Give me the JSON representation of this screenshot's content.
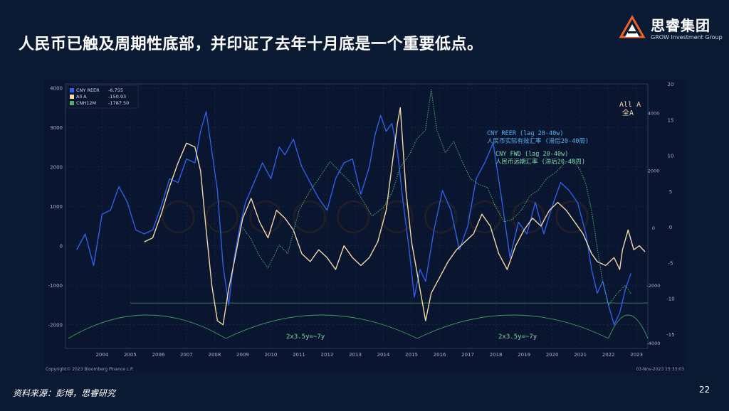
{
  "slide": {
    "title": "人民币已触及周期性底部，并印证了去年十月底是一个重要低点。",
    "source": "资料来源：彭博，思睿研究",
    "page_number": "22"
  },
  "logo": {
    "name": "思睿集团",
    "subtitle": "GROW Investment Group"
  },
  "colors": {
    "background": "#0b1a33",
    "cny_reer": "#2f5fe8",
    "all_a": "#f3d9a8",
    "cnh12m": "#4fae6e",
    "annotation": "#5ab0f0",
    "annotation_green": "#7ed8a6",
    "cycle": "#3f9a5a"
  },
  "chart_data": {
    "type": "line",
    "x_axis": {
      "ticks": [
        "2004",
        "2005",
        "2006",
        "2007",
        "2008",
        "2009",
        "2010",
        "2011",
        "2012",
        "2013",
        "2014",
        "2015",
        "2016",
        "2017",
        "2018",
        "2019",
        "2020",
        "2021",
        "2022",
        "2023"
      ],
      "range": [
        2003.2,
        2023.9
      ]
    },
    "left_axis": {
      "ticks": [
        4000,
        3000,
        2000,
        1000,
        0,
        -1000,
        -2000
      ],
      "range": [
        -2600,
        4100
      ]
    },
    "right_axis": {
      "ticks": [
        20,
        15,
        10,
        5,
        0,
        -5,
        -10,
        -15
      ],
      "range": [
        -17,
        20
      ],
      "inner_ticks": [
        4000,
        2000,
        0,
        -2000,
        -4000
      ],
      "inner_range": [
        -4200,
        5000
      ]
    },
    "legend": [
      {
        "name": "CNY REER",
        "value": "-6.755",
        "color": "#2f5fe8",
        "style": "solid"
      },
      {
        "name": "All A",
        "value": "-150.93",
        "color": "#f3d9a8",
        "style": "solid"
      },
      {
        "name": "CNH12M",
        "value": "-1787.50",
        "color": "#4fae6e",
        "style": "dotted"
      }
    ],
    "series": [
      {
        "name": "CNY REER",
        "axis": "left",
        "points": [
          [
            2003.6,
            -100
          ],
          [
            2003.9,
            300
          ],
          [
            2004.2,
            -500
          ],
          [
            2004.5,
            800
          ],
          [
            2004.8,
            900
          ],
          [
            2005.1,
            1500
          ],
          [
            2005.4,
            1100
          ],
          [
            2005.7,
            400
          ],
          [
            2006.0,
            300
          ],
          [
            2006.3,
            400
          ],
          [
            2006.6,
            1000
          ],
          [
            2006.9,
            1700
          ],
          [
            2007.2,
            1600
          ],
          [
            2007.5,
            2200
          ],
          [
            2007.8,
            2100
          ],
          [
            2008.0,
            2900
          ],
          [
            2008.2,
            3400
          ],
          [
            2008.4,
            2400
          ],
          [
            2008.6,
            1400
          ],
          [
            2008.8,
            -500
          ],
          [
            2009.0,
            -1500
          ],
          [
            2009.2,
            -300
          ],
          [
            2009.4,
            500
          ],
          [
            2009.6,
            1100
          ],
          [
            2009.9,
            1600
          ],
          [
            2010.2,
            2100
          ],
          [
            2010.5,
            1700
          ],
          [
            2010.8,
            2500
          ],
          [
            2011.0,
            2300
          ],
          [
            2011.3,
            2700
          ],
          [
            2011.6,
            2000
          ],
          [
            2011.9,
            1600
          ],
          [
            2012.2,
            1200
          ],
          [
            2012.5,
            900
          ],
          [
            2012.8,
            1700
          ],
          [
            2013.1,
            2100
          ],
          [
            2013.4,
            2200
          ],
          [
            2013.7,
            1300
          ],
          [
            2014.0,
            2000
          ],
          [
            2014.2,
            2800
          ],
          [
            2014.4,
            3300
          ],
          [
            2014.6,
            2900
          ],
          [
            2014.8,
            3100
          ],
          [
            2015.0,
            2400
          ],
          [
            2015.2,
            1100
          ],
          [
            2015.4,
            0
          ],
          [
            2015.6,
            -1300
          ],
          [
            2015.8,
            -600
          ],
          [
            2016.0,
            -900
          ],
          [
            2016.3,
            400
          ],
          [
            2016.6,
            1400
          ],
          [
            2016.9,
            900
          ],
          [
            2017.2,
            -100
          ],
          [
            2017.5,
            500
          ],
          [
            2017.8,
            1700
          ],
          [
            2018.1,
            2100
          ],
          [
            2018.4,
            2600
          ],
          [
            2018.7,
            1200
          ],
          [
            2019.0,
            -300
          ],
          [
            2019.3,
            600
          ],
          [
            2019.6,
            300
          ],
          [
            2019.9,
            1100
          ],
          [
            2020.2,
            300
          ],
          [
            2020.5,
            1000
          ],
          [
            2020.8,
            1600
          ],
          [
            2021.1,
            1400
          ],
          [
            2021.4,
            1100
          ],
          [
            2021.7,
            300
          ],
          [
            2021.9,
            -600
          ],
          [
            2022.1,
            -1200
          ],
          [
            2022.3,
            -900
          ],
          [
            2022.5,
            -1500
          ],
          [
            2022.7,
            -2000
          ],
          [
            2022.9,
            -1700
          ],
          [
            2023.1,
            -1100
          ],
          [
            2023.3,
            -700
          ]
        ]
      },
      {
        "name": "All A",
        "axis": "left",
        "points": [
          [
            2006.0,
            100
          ],
          [
            2006.3,
            200
          ],
          [
            2006.6,
            800
          ],
          [
            2006.9,
            1500
          ],
          [
            2007.2,
            2100
          ],
          [
            2007.5,
            2600
          ],
          [
            2007.8,
            2500
          ],
          [
            2008.0,
            1900
          ],
          [
            2008.2,
            400
          ],
          [
            2008.4,
            -1000
          ],
          [
            2008.6,
            -1900
          ],
          [
            2008.8,
            -2000
          ],
          [
            2009.0,
            -1100
          ],
          [
            2009.2,
            -400
          ],
          [
            2009.5,
            700
          ],
          [
            2009.8,
            1200
          ],
          [
            2010.1,
            600
          ],
          [
            2010.4,
            200
          ],
          [
            2010.7,
            900
          ],
          [
            2011.0,
            700
          ],
          [
            2011.3,
            400
          ],
          [
            2011.6,
            -200
          ],
          [
            2011.9,
            -400
          ],
          [
            2012.2,
            -100
          ],
          [
            2012.5,
            -300
          ],
          [
            2012.8,
            -600
          ],
          [
            2013.1,
            0
          ],
          [
            2013.4,
            -300
          ],
          [
            2013.7,
            -500
          ],
          [
            2014.0,
            -300
          ],
          [
            2014.3,
            100
          ],
          [
            2014.6,
            900
          ],
          [
            2014.8,
            2000
          ],
          [
            2015.0,
            3100
          ],
          [
            2015.1,
            3500
          ],
          [
            2015.3,
            1400
          ],
          [
            2015.5,
            100
          ],
          [
            2015.7,
            -700
          ],
          [
            2015.9,
            -1500
          ],
          [
            2016.0,
            -1900
          ],
          [
            2016.2,
            -1200
          ],
          [
            2016.5,
            -800
          ],
          [
            2016.8,
            -400
          ],
          [
            2017.1,
            -100
          ],
          [
            2017.4,
            100
          ],
          [
            2017.7,
            300
          ],
          [
            2018.0,
            800
          ],
          [
            2018.3,
            500
          ],
          [
            2018.6,
            -200
          ],
          [
            2018.9,
            -600
          ],
          [
            2019.2,
            0
          ],
          [
            2019.5,
            400
          ],
          [
            2019.8,
            700
          ],
          [
            2020.1,
            500
          ],
          [
            2020.4,
            900
          ],
          [
            2020.7,
            1100
          ],
          [
            2021.0,
            900
          ],
          [
            2021.3,
            600
          ],
          [
            2021.6,
            300
          ],
          [
            2021.9,
            -200
          ],
          [
            2022.1,
            -400
          ],
          [
            2022.4,
            -500
          ],
          [
            2022.7,
            -300
          ],
          [
            2022.9,
            -600
          ],
          [
            2023.0,
            -100
          ],
          [
            2023.2,
            400
          ],
          [
            2023.4,
            -100
          ],
          [
            2023.6,
            0
          ],
          [
            2023.8,
            -150
          ]
        ]
      },
      {
        "name": "CNH12M",
        "axis": "right",
        "points": [
          [
            2009.5,
            0
          ],
          [
            2009.8,
            -400
          ],
          [
            2010.1,
            -1000
          ],
          [
            2010.4,
            -1400
          ],
          [
            2010.8,
            -600
          ],
          [
            2011.1,
            -900
          ],
          [
            2011.5,
            600
          ],
          [
            2011.9,
            1300
          ],
          [
            2012.2,
            1700
          ],
          [
            2012.6,
            2300
          ],
          [
            2013.0,
            1900
          ],
          [
            2013.4,
            1500
          ],
          [
            2013.8,
            900
          ],
          [
            2014.1,
            400
          ],
          [
            2014.5,
            700
          ],
          [
            2014.8,
            1200
          ],
          [
            2015.1,
            2100
          ],
          [
            2015.4,
            2500
          ],
          [
            2015.7,
            3100
          ],
          [
            2016.0,
            3400
          ],
          [
            2016.2,
            4800
          ],
          [
            2016.4,
            3400
          ],
          [
            2016.7,
            2600
          ],
          [
            2017.0,
            3000
          ],
          [
            2017.3,
            2300
          ],
          [
            2017.6,
            1700
          ],
          [
            2017.9,
            1500
          ],
          [
            2018.2,
            1400
          ],
          [
            2018.5,
            700
          ],
          [
            2018.8,
            200
          ],
          [
            2019.1,
            300
          ],
          [
            2019.4,
            600
          ],
          [
            2019.7,
            1100
          ],
          [
            2020.0,
            1300
          ],
          [
            2020.3,
            1700
          ],
          [
            2020.6,
            1900
          ],
          [
            2020.9,
            2200
          ],
          [
            2021.2,
            2400
          ],
          [
            2021.5,
            2000
          ],
          [
            2021.7,
            1500
          ],
          [
            2021.9,
            600
          ],
          [
            2022.1,
            -700
          ],
          [
            2022.3,
            -1900
          ],
          [
            2022.5,
            -2700
          ],
          [
            2022.8,
            -2300
          ],
          [
            2023.1,
            -2000
          ],
          [
            2023.3,
            -2300
          ]
        ]
      }
    ],
    "annotations": [
      {
        "text": "All A",
        "color": "#f3d9a8"
      },
      {
        "text": "全A",
        "color": "#f3d9a8"
      },
      {
        "text": "CNY REER (lag 20-40w)",
        "color": "#5ab0f0"
      },
      {
        "text": "人民币实际有效汇率 (滞后20-40周)",
        "color": "#5ab0f0"
      },
      {
        "text": "CNY FWD (lag 20-40w)",
        "color": "#7ed8a6"
      },
      {
        "text": "人民币远期汇率 (滞后20-40周)",
        "color": "#7ed8a6"
      },
      {
        "text": "2x3.5y=~7y",
        "color": "#7ed8a6"
      },
      {
        "text": "2x3.5y=~7y",
        "color": "#7ed8a6"
      }
    ],
    "footer_left": "Copyright© 2023 Bloomberg Finance L.P.",
    "footer_right": "03-Nov-2023 15:33:03",
    "grid": true,
    "legend_position": "top-left"
  }
}
